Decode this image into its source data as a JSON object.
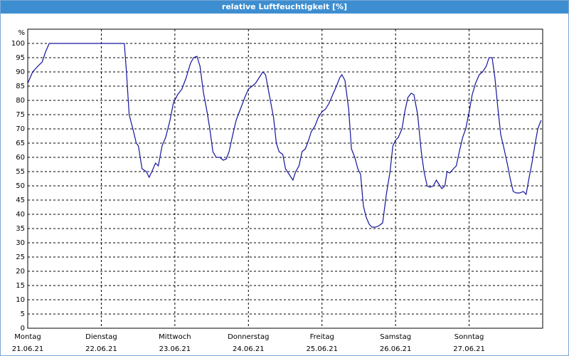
{
  "chart_data": {
    "type": "line",
    "title": "relative Luftfeuchtigkeit [%]",
    "y_label": "%",
    "xlim": [
      0,
      168
    ],
    "ylim": [
      0,
      100
    ],
    "yticks": [
      0,
      5,
      10,
      15,
      20,
      25,
      30,
      35,
      40,
      45,
      50,
      55,
      60,
      65,
      70,
      75,
      80,
      85,
      90,
      95,
      100
    ],
    "xticks": [
      {
        "value": 0,
        "label": "Montag"
      },
      {
        "value": 24,
        "label": "Dienstag"
      },
      {
        "value": 48,
        "label": "Mittwoch"
      },
      {
        "value": 72,
        "label": "Donnerstag"
      },
      {
        "value": 96,
        "label": "Freitag"
      },
      {
        "value": 120,
        "label": "Samstag"
      },
      {
        "value": 144,
        "label": "Sonntag"
      }
    ],
    "xtick_dates": [
      "21.06.21",
      "22.06.21",
      "23.06.21",
      "24.06.21",
      "25.06.21",
      "26.06.21",
      "27.06.21"
    ],
    "grid": true,
    "x": [
      0,
      1.6,
      3.3,
      4.7,
      5.8,
      7.0,
      7.9,
      31.5,
      32.2,
      33.1,
      34.3,
      35.4,
      36.1,
      37.3,
      38.7,
      39.6,
      40.5,
      41.7,
      42.6,
      43.8,
      45.0,
      46.4,
      47.5,
      48.9,
      50.3,
      51.7,
      53.1,
      54.1,
      55.2,
      56.2,
      57.3,
      58.5,
      59.4,
      60.4,
      61.5,
      62.7,
      63.8,
      64.8,
      65.7,
      66.9,
      68.0,
      69.4,
      70.8,
      72.0,
      73.2,
      74.3,
      75.5,
      76.7,
      77.6,
      78.8,
      80.2,
      81.1,
      82.0,
      83.2,
      84.1,
      85.3,
      86.5,
      87.4,
      88.5,
      89.5,
      90.6,
      91.6,
      92.5,
      93.7,
      94.8,
      96.0,
      97.2,
      98.3,
      99.5,
      100.7,
      101.8,
      102.5,
      103.5,
      104.7,
      105.6,
      106.7,
      107.7,
      108.6,
      109.5,
      110.4,
      111.4,
      112.3,
      113.5,
      114.6,
      115.8,
      117.0,
      118.2,
      119.1,
      120.0,
      120.9,
      122.1,
      123.0,
      124.0,
      125.1,
      126.0,
      127.2,
      128.4,
      129.3,
      130.3,
      131.2,
      132.3,
      133.3,
      134.2,
      135.1,
      136.1,
      136.8,
      137.7,
      138.9,
      139.8,
      140.8,
      141.9,
      142.9,
      144.0,
      145.0,
      146.1,
      147.3,
      148.4,
      149.6,
      150.5,
      151.5,
      152.4,
      153.3,
      154.3,
      155.4,
      156.6,
      157.5,
      158.4,
      159.4,
      160.5,
      161.7,
      162.6,
      163.6,
      164.5,
      165.4,
      166.4,
      167.5
    ],
    "series": [
      {
        "color": "#14149c",
        "values": [
          86,
          90,
          92,
          93.5,
          97,
          100,
          100,
          100,
          90,
          75,
          70,
          65,
          64,
          56,
          55,
          53,
          55,
          58,
          57,
          64,
          67,
          73,
          79,
          82,
          84,
          88,
          93,
          95,
          95.5,
          92,
          83,
          76,
          70,
          62,
          60,
          60,
          59,
          59.5,
          62,
          68,
          73,
          77,
          81,
          84,
          85,
          86,
          88,
          90,
          89,
          82,
          74,
          65,
          62,
          61,
          56,
          54,
          52,
          55,
          57,
          62,
          63,
          66,
          69,
          71,
          74,
          76,
          77,
          79,
          82,
          85,
          88,
          89,
          87,
          77,
          63,
          60,
          56,
          54,
          43,
          39,
          36.5,
          35.5,
          35.5,
          36,
          37,
          47,
          55,
          64,
          66,
          67,
          70,
          76,
          81,
          82.5,
          82,
          75,
          62,
          55,
          50,
          49.5,
          50,
          52,
          50.5,
          49,
          50,
          55,
          54.5,
          56,
          57,
          62,
          67,
          70,
          76,
          82,
          86,
          89,
          90,
          92,
          95,
          95,
          88,
          78,
          68,
          63,
          57,
          52,
          48,
          47.5,
          47.5,
          48,
          47,
          53,
          58,
          64,
          70,
          73
        ]
      }
    ]
  }
}
